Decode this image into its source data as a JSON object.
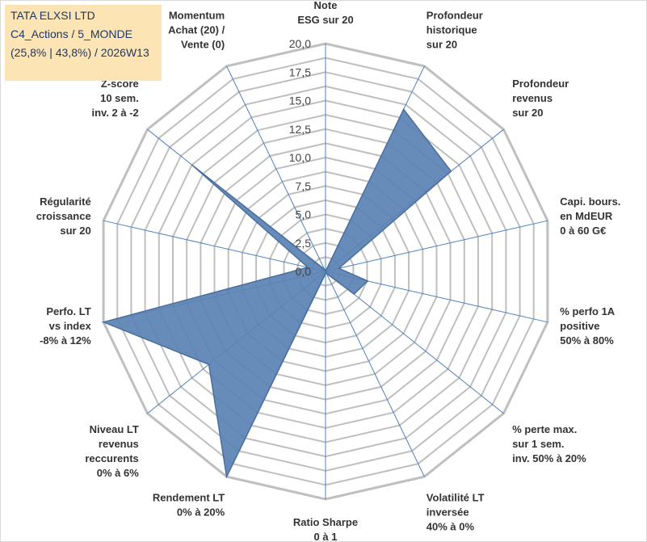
{
  "title": {
    "line1": "TATA ELXSI LTD",
    "line2": "C4_Actions / 5_MONDE",
    "line3": "(25,8% | 43,8%) / 2026W13"
  },
  "chart_data": {
    "type": "radar",
    "rmin": 0,
    "rmax": 20,
    "ticks": [
      "0,0",
      "2,5",
      "5,0",
      "7,5",
      "10,0",
      "12,5",
      "15,0",
      "17,5",
      "20,0"
    ],
    "tick_values": [
      0,
      2.5,
      5,
      7.5,
      10,
      12.5,
      15,
      17.5,
      20
    ],
    "colors": {
      "fill": "#5b82b4",
      "stroke": "#4a6f9e",
      "grid": "#bfbfbf",
      "spoke": "#4f81bd"
    },
    "axes": [
      {
        "lines": [
          "Note",
          "ESG sur 20"
        ],
        "value": 0
      },
      {
        "lines": [
          "Profondeur",
          "historique",
          "sur 20"
        ],
        "value": 15.8
      },
      {
        "lines": [
          "Profondeur",
          "revenus",
          "sur 20"
        ],
        "value": 14.1
      },
      {
        "lines": [
          "Capi. bours.",
          "en MdEUR",
          "0 à 60 G€"
        ],
        "value": 1.2
      },
      {
        "lines": [
          "% perfo 1A",
          "positive",
          "50% à 80%"
        ],
        "value": 3.8
      },
      {
        "lines": [
          "% perte max.",
          "sur 1 sem.",
          "inv. 50% à 20%"
        ],
        "value": 3.2
      },
      {
        "lines": [
          "Volatilité LT",
          "inversée",
          "40% à 0%"
        ],
        "value": 0.2
      },
      {
        "lines": [
          "Ratio Sharpe",
          "0 à 1"
        ],
        "value": 0.2
      },
      {
        "lines": [
          "Rendement LT",
          "0% à 20%"
        ],
        "value": 20.0
      },
      {
        "lines": [
          "Niveau LT",
          "revenus",
          "reccurents",
          "0% à 6%"
        ],
        "value": 13.1
      },
      {
        "lines": [
          "Perfo. LT",
          "vs index",
          "-8% à 12%"
        ],
        "value": 20.0
      },
      {
        "lines": [
          "Régularité",
          "croissance",
          "sur 20"
        ],
        "value": 1.6
      },
      {
        "lines": [
          "Z-score",
          "10 sem.",
          "inv. 2 à -2"
        ],
        "value": 15.0
      },
      {
        "lines": [
          "Momentum",
          "Achat (20) /",
          "Vente (0)"
        ],
        "value": 0.2
      }
    ]
  }
}
